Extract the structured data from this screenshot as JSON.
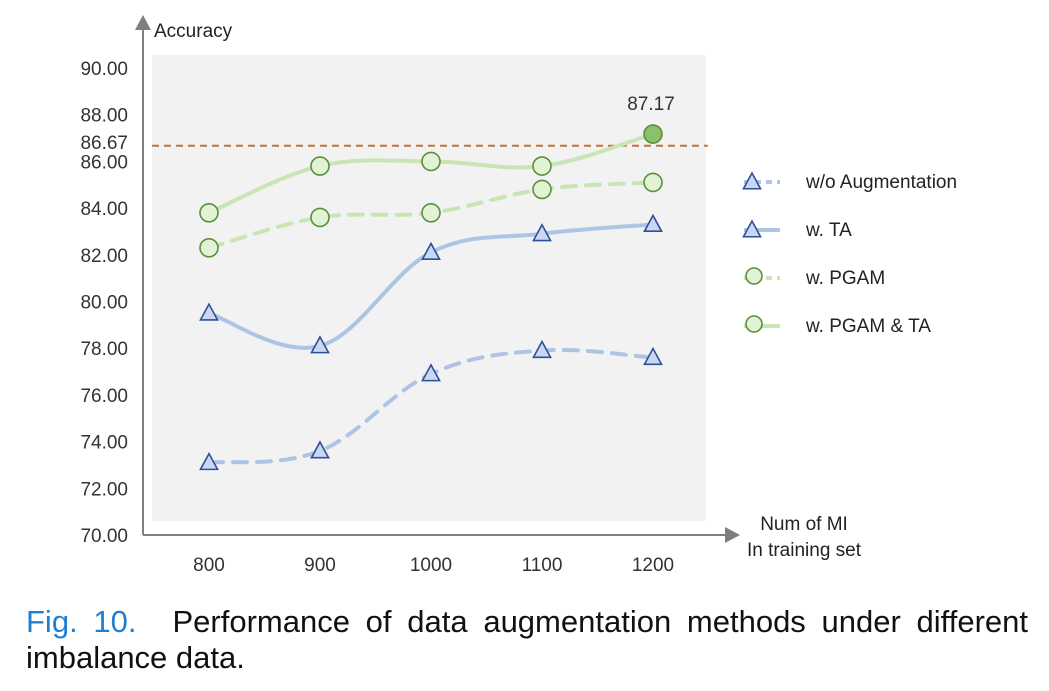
{
  "chart_data": {
    "type": "line",
    "ylabel": "Accuracy",
    "xlabel": [
      "Num of MI",
      "In training set"
    ],
    "categories": [
      "800",
      "900",
      "1000",
      "1100",
      "1200"
    ],
    "ylim": [
      70,
      90
    ],
    "yticks": [
      "70.00",
      "72.00",
      "74.00",
      "76.00",
      "78.00",
      "80.00",
      "82.00",
      "84.00",
      "86.00",
      "88.00",
      "90.00"
    ],
    "grid": false,
    "reference_line": {
      "value": 86.67,
      "label": "86.67",
      "color": "#c0773a"
    },
    "annotation": {
      "label": "87.17",
      "series": "w. PGAM & TA",
      "category": "1200",
      "color": "#5a8f3c"
    },
    "series": [
      {
        "name": "w/o Augmentation",
        "values": [
          73.1,
          73.6,
          76.9,
          77.9,
          77.6
        ],
        "marker": "triangle",
        "line": "dashed",
        "line_color": "#adc4e6",
        "marker_fill": "#c9d8f0",
        "marker_stroke": "#2f4f99"
      },
      {
        "name": "w. TA",
        "values": [
          79.5,
          78.1,
          82.1,
          82.9,
          83.3
        ],
        "marker": "triangle",
        "line": "solid",
        "line_color": "#adc4e6",
        "marker_fill": "#c9d8f0",
        "marker_stroke": "#2f4f99"
      },
      {
        "name": "w. PGAM",
        "values": [
          82.3,
          83.6,
          83.8,
          84.8,
          85.1
        ],
        "marker": "circle",
        "line": "dashed",
        "line_color": "#c8e6b4",
        "marker_fill": "#e2f3d5",
        "marker_stroke": "#5a8f3c"
      },
      {
        "name": "w. PGAM & TA",
        "values": [
          83.8,
          85.8,
          86.0,
          85.8,
          87.17
        ],
        "marker": "circle",
        "line": "solid",
        "line_color": "#c8e6b4",
        "marker_fill": "#e2f3d5",
        "marker_stroke": "#5a8f3c",
        "highlight_last_fill": "#8cc06a"
      }
    ],
    "legend_position": "right"
  },
  "caption": {
    "fig_label": "Fig. 10.",
    "text": "Performance of data augmentation methods under different imbalance data."
  }
}
